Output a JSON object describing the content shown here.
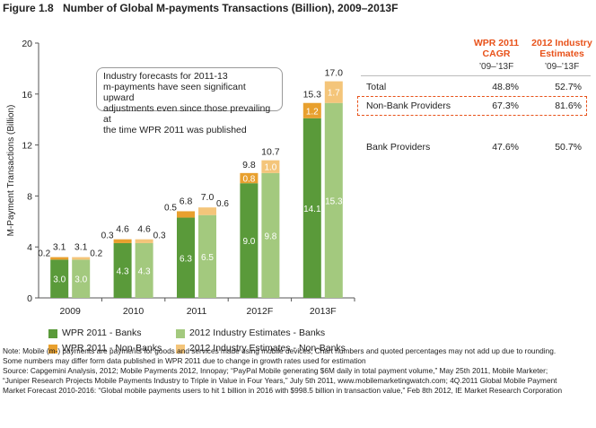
{
  "figure": {
    "label": "Figure 1.8",
    "title": "Number of Global M-payments Transactions (Billion), 2009–2013F"
  },
  "callout": {
    "lines": [
      "Industry forecasts for 2011-13",
      "m-payments have seen significant upward",
      "adjustments even since those prevailing at",
      "the time WPR 2011 was published"
    ]
  },
  "cagr_table": {
    "col1_header": [
      "WPR 2011",
      "CAGR"
    ],
    "col2_header": [
      "2012 Industry",
      "Estimates"
    ],
    "col1_period": "’09–’13F",
    "col2_period": "’09–’13F",
    "rows": [
      {
        "label": "Total",
        "wpr": "48.8%",
        "est": "52.7%"
      },
      {
        "label": "Non-Bank Providers",
        "wpr": "67.3%",
        "est": "81.6%"
      },
      {
        "label": "Bank Providers",
        "wpr": "47.6%",
        "est": "50.7%"
      }
    ],
    "header_color": "#e8521a"
  },
  "chart_data": {
    "type": "bar",
    "stacked": true,
    "categories": [
      "2009",
      "2010",
      "2011",
      "2012F",
      "2013F"
    ],
    "ylabel": "M-Payment Transactions (Billion)",
    "ylim": [
      0,
      20
    ],
    "yticks": [
      0,
      4,
      8,
      12,
      16,
      20
    ],
    "grid": false,
    "series": [
      {
        "name": "WPR 2011 - Banks",
        "color": "#5a9a3a",
        "group": "wpr",
        "values": [
          3.0,
          4.3,
          6.3,
          9.0,
          14.1
        ],
        "labels": [
          "3.0",
          "4.3",
          "6.3",
          "9.0",
          "14.1"
        ]
      },
      {
        "name": "WPR 2011 - Non-Banks",
        "color": "#e8a02e",
        "group": "wpr",
        "values": [
          0.2,
          0.3,
          0.5,
          0.8,
          1.2
        ],
        "labels": [
          "0.2",
          "0.3",
          "0.5",
          "0.8",
          "1.2"
        ]
      },
      {
        "name": "2012 Industry Estimates - Banks",
        "color": "#a3c97e",
        "group": "est",
        "values": [
          3.0,
          4.3,
          6.5,
          9.8,
          15.3
        ],
        "labels": [
          "3.0",
          "4.3",
          "6.5",
          "9.8",
          "15.3"
        ]
      },
      {
        "name": "2012 Industry Estimates - Non-Banks",
        "color": "#f4c57a",
        "group": "est",
        "values": [
          0.2,
          0.3,
          0.6,
          1.0,
          1.7
        ],
        "labels": [
          "0.2",
          "0.3",
          "0.6",
          "1.0",
          "1.7"
        ]
      }
    ],
    "totals": {
      "wpr": [
        "3.1",
        "4.6",
        "6.8",
        "9.8",
        "15.3"
      ],
      "est": [
        "3.1",
        "4.6",
        "7.0",
        "10.7",
        "17.0"
      ]
    },
    "legend_position": "bottom"
  },
  "footnotes": [
    "Note: Mobile (m-) payments are payments for goods and services made using mobile devices; Chart numbers and quoted percentages may not add up due to rounding.",
    "Some numbers may differ form data published in WPR 2011 due to change in growth rates used for estimation",
    "Source: Capgemini Analysis, 2012; Mobile Payments 2012, Innopay; “PayPal Mobile generating $6M daily in total payment volume,” May 25th 2011, Mobile Marketer;",
    "“Juniper Research Projects Mobile Payments Industry to Triple in Value in Four Years,” July 5th 2011, www.mobilemarketingwatch.com; 4Q.2011 Global Mobile Payment",
    "Market Forecast 2010-2016: “Global mobile payments users to hit 1 billion in 2016 with $998.5 billion in transaction value,” Feb 8th 2012, IE Market Research Corporation"
  ]
}
